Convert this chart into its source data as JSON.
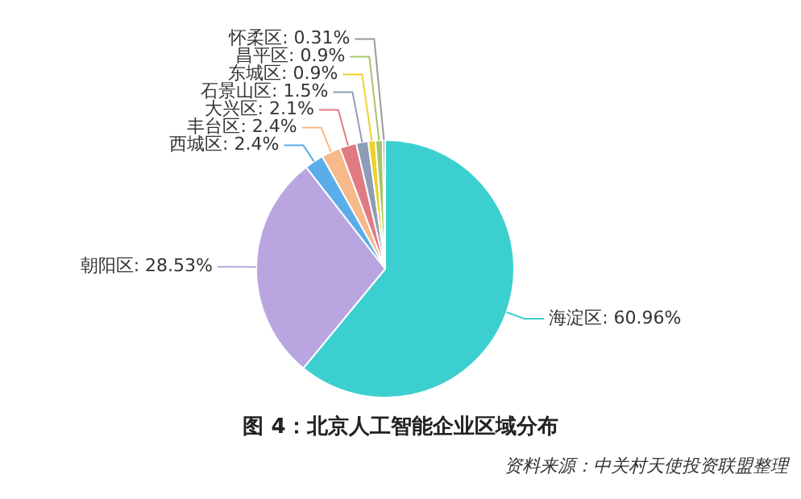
{
  "chart_data": {
    "type": "pie",
    "title": "图 4：北京人工智能企业区域分布",
    "categories": [
      "海淀区",
      "朝阳区",
      "西城区",
      "丰台区",
      "大兴区",
      "石景山区",
      "东城区",
      "昌平区",
      "怀柔区"
    ],
    "values": [
      60.96,
      28.53,
      2.4,
      2.4,
      2.1,
      1.5,
      0.9,
      0.9,
      0.31
    ],
    "colors": [
      "#3ccfcf",
      "#b9a6e0",
      "#5aade8",
      "#f6b98a",
      "#e07b83",
      "#8f9cb8",
      "#f0d02a",
      "#a8c46a",
      "#9a9a9a"
    ],
    "value_labels": [
      "60.96%",
      "28.53%",
      "2.4%",
      "2.4%",
      "2.1%",
      "1.5%",
      "0.9%",
      "0.9%",
      "0.31%"
    ],
    "legend": false,
    "annotations": [
      "资料来源：中关村天使投资联盟整理"
    ]
  }
}
